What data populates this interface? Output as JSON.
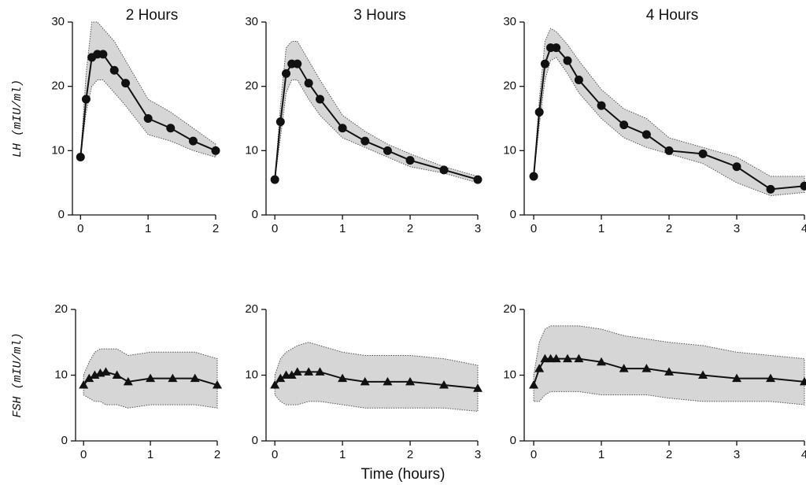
{
  "chart_data": [
    {
      "type": "line",
      "title": "2 Hours",
      "ylabel": "LH (mIU/ml)",
      "marker": "circle",
      "band": true,
      "x": [
        0,
        0.083,
        0.167,
        0.25,
        0.333,
        0.5,
        0.667,
        1,
        1.333,
        1.667,
        2
      ],
      "series": [
        {
          "color": "#111",
          "values": [
            9,
            18,
            24.5,
            25,
            25,
            22.5,
            20.5,
            15,
            13.5,
            11.5,
            10
          ],
          "lower": [
            9,
            16,
            20,
            21,
            21,
            19,
            17,
            12.5,
            11.5,
            10,
            9
          ],
          "upper": [
            9,
            22,
            30,
            30,
            29,
            27,
            24,
            18,
            16,
            13.5,
            11
          ]
        }
      ],
      "xlim": [
        -0.12,
        2
      ],
      "xticks": [
        0,
        1,
        2
      ],
      "ylim": [
        0,
        30
      ],
      "yticks": [
        0,
        10,
        20,
        30
      ]
    },
    {
      "type": "line",
      "title": "3 Hours",
      "marker": "circle",
      "band": true,
      "x": [
        0,
        0.083,
        0.167,
        0.25,
        0.333,
        0.5,
        0.667,
        1,
        1.333,
        1.667,
        2,
        2.5,
        3
      ],
      "series": [
        {
          "color": "#111",
          "values": [
            5.5,
            14.5,
            22,
            23.5,
            23.5,
            20.5,
            18,
            13.5,
            11.5,
            10,
            8.5,
            7,
            5.5
          ],
          "lower": [
            5.5,
            12,
            19,
            21,
            21,
            18,
            15.5,
            12,
            10.5,
            9,
            7.5,
            6.5,
            5
          ],
          "upper": [
            5.5,
            17,
            26,
            27,
            27,
            24,
            21,
            15.5,
            13,
            11,
            9.5,
            7.5,
            6
          ]
        }
      ],
      "xlim": [
        -0.13,
        3
      ],
      "xticks": [
        0,
        1,
        2,
        3
      ],
      "ylim": [
        0,
        30
      ],
      "yticks": [
        0,
        10,
        20,
        30
      ]
    },
    {
      "type": "line",
      "title": "4 Hours",
      "marker": "circle",
      "band": true,
      "x": [
        0,
        0.083,
        0.167,
        0.25,
        0.333,
        0.5,
        0.667,
        1,
        1.333,
        1.667,
        2,
        2.5,
        3,
        3.5,
        4
      ],
      "series": [
        {
          "color": "#111",
          "values": [
            6,
            16,
            23.5,
            26,
            26,
            24,
            21,
            17,
            14,
            12.5,
            10,
            9.5,
            7.5,
            4,
            4.5
          ],
          "lower": [
            6,
            14,
            21,
            24,
            24.5,
            22,
            19,
            15,
            12,
            10.5,
            9.5,
            8,
            5,
            3,
            3.5
          ],
          "upper": [
            6,
            18,
            27,
            29,
            28.5,
            26.5,
            24,
            19.5,
            16.5,
            15,
            12,
            10.5,
            9,
            6,
            6
          ]
        }
      ],
      "xlim": [
        -0.14,
        4
      ],
      "xticks": [
        0,
        1,
        2,
        3,
        4
      ],
      "ylim": [
        0,
        30
      ],
      "yticks": [
        0,
        10,
        20,
        30
      ]
    },
    {
      "type": "line",
      "ylabel": "FSH (mIU/ml)",
      "marker": "triangle",
      "band": true,
      "x": [
        0,
        0.083,
        0.167,
        0.25,
        0.333,
        0.5,
        0.667,
        1,
        1.333,
        1.667,
        2
      ],
      "series": [
        {
          "color": "#111",
          "values": [
            8.5,
            9.5,
            10,
            10.3,
            10.5,
            10,
            9,
            9.5,
            9.5,
            9.5,
            8.5
          ],
          "lower": [
            7,
            6.5,
            6,
            6,
            5.5,
            5.5,
            5,
            5.5,
            5.5,
            5.5,
            5
          ],
          "upper": [
            10,
            12,
            13.5,
            14,
            14,
            14,
            13,
            13.5,
            13.5,
            13.5,
            12.5
          ]
        }
      ],
      "xlim": [
        -0.12,
        2
      ],
      "xticks": [
        0,
        1,
        2
      ],
      "ylim": [
        0,
        20
      ],
      "yticks": [
        0,
        10,
        20
      ]
    },
    {
      "type": "line",
      "xlabel": "Time (hours)",
      "marker": "triangle",
      "band": true,
      "x": [
        0,
        0.083,
        0.167,
        0.25,
        0.333,
        0.5,
        0.667,
        1,
        1.333,
        1.667,
        2,
        2.5,
        3
      ],
      "series": [
        {
          "color": "#111",
          "values": [
            8.5,
            9.5,
            10,
            10,
            10.5,
            10.5,
            10.5,
            9.5,
            9,
            9,
            9,
            8.5,
            8
          ],
          "lower": [
            7,
            6,
            5.5,
            5.5,
            5.5,
            6,
            6,
            5.5,
            5,
            5,
            5,
            5,
            4.5
          ],
          "upper": [
            10,
            12.5,
            13.5,
            14,
            14.5,
            15,
            14.5,
            13.5,
            13,
            13,
            13,
            12.5,
            11.5
          ]
        }
      ],
      "xlim": [
        -0.13,
        3
      ],
      "xticks": [
        0,
        1,
        2,
        3
      ],
      "ylim": [
        0,
        20
      ],
      "yticks": [
        0,
        10,
        20
      ]
    },
    {
      "type": "line",
      "marker": "triangle",
      "band": true,
      "x": [
        0,
        0.083,
        0.167,
        0.25,
        0.333,
        0.5,
        0.667,
        1,
        1.333,
        1.667,
        2,
        2.5,
        3,
        3.5,
        4
      ],
      "series": [
        {
          "color": "#111",
          "values": [
            8.5,
            11,
            12.5,
            12.5,
            12.5,
            12.5,
            12.5,
            12,
            11,
            11,
            10.5,
            10,
            9.5,
            9.5,
            9
          ],
          "lower": [
            6,
            6,
            7,
            7.5,
            7.5,
            7.5,
            7.5,
            7,
            7,
            7,
            6.5,
            6,
            6,
            6,
            5.5
          ],
          "upper": [
            10,
            15,
            17,
            17.5,
            17.5,
            17.5,
            17.5,
            17,
            16,
            15.5,
            15,
            14.5,
            13.5,
            13,
            12.5
          ]
        }
      ],
      "xlim": [
        -0.14,
        4
      ],
      "xticks": [
        0,
        1,
        2,
        3,
        4
      ],
      "ylim": [
        0,
        20
      ],
      "yticks": [
        0,
        10,
        20
      ]
    }
  ]
}
